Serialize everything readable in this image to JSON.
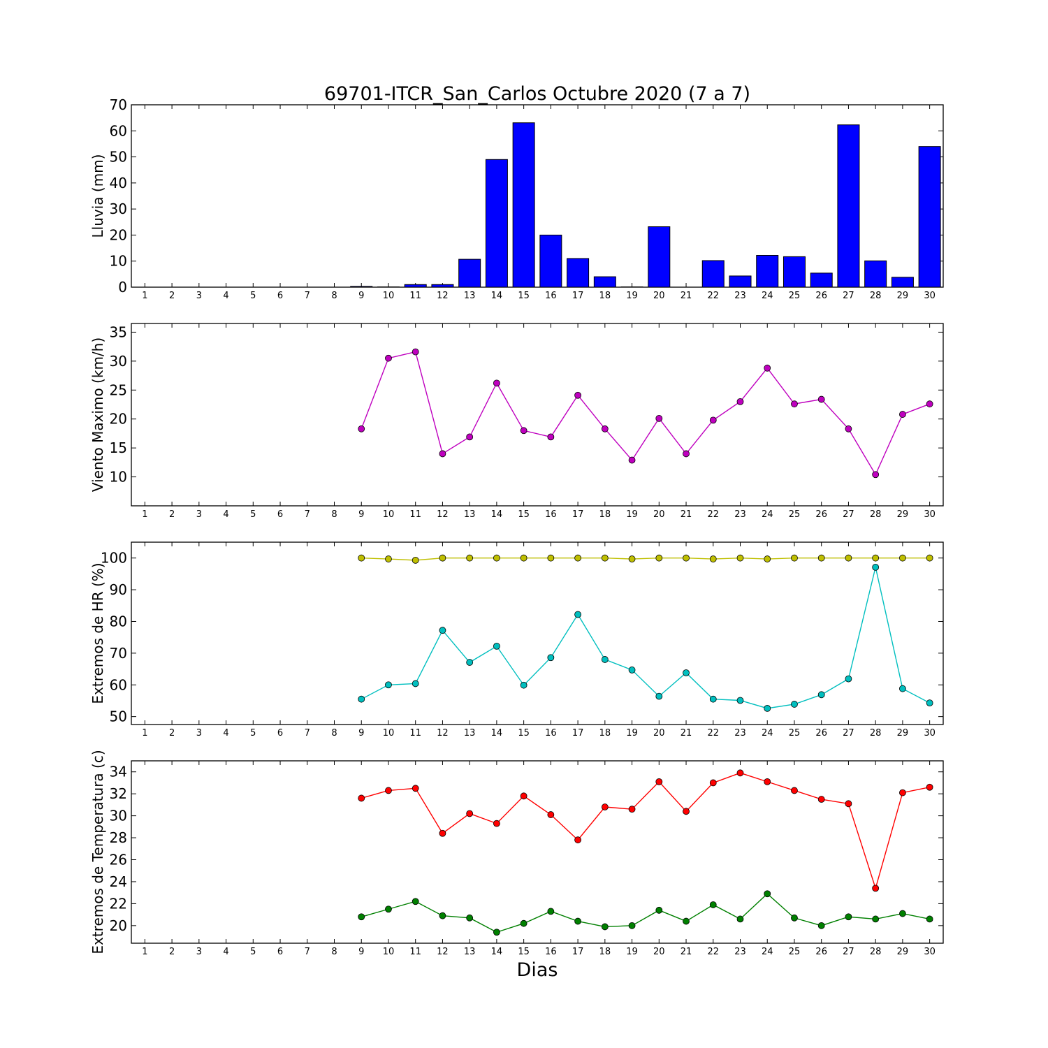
{
  "figure": {
    "title": "69701-ITCR_San_Carlos Octubre 2020  (7 a 7)",
    "xlabel": "Dias"
  },
  "chart_data": [
    {
      "type": "bar",
      "ylabel": "Lluvia (mm)",
      "ylim": [
        0,
        70
      ],
      "yticks": [
        0,
        10,
        20,
        30,
        40,
        50,
        60,
        70
      ],
      "categories": [
        "1",
        "2",
        "3",
        "4",
        "5",
        "6",
        "7",
        "8",
        "9",
        "10",
        "11",
        "12",
        "13",
        "14",
        "15",
        "16",
        "17",
        "18",
        "19",
        "20",
        "21",
        "22",
        "23",
        "24",
        "25",
        "26",
        "27",
        "28",
        "29",
        "30"
      ],
      "series": [
        {
          "color": "#0000ff",
          "values": [
            0,
            0,
            0,
            0,
            0,
            0,
            0,
            0,
            0.3,
            0.1,
            1.0,
            1.0,
            10.7,
            49.0,
            63.1,
            20.0,
            11.0,
            4.0,
            0.1,
            23.2,
            0,
            10.2,
            4.3,
            12.2,
            11.7,
            5.4,
            62.3,
            10.1,
            3.8,
            54.0
          ]
        }
      ]
    },
    {
      "type": "line",
      "ylabel": "Viento Maximo (km/h)",
      "ylim": [
        5,
        36.5
      ],
      "yticks": [
        10,
        15,
        20,
        25,
        30,
        35
      ],
      "x": [
        9,
        10,
        11,
        12,
        13,
        14,
        15,
        16,
        17,
        18,
        19,
        20,
        21,
        22,
        23,
        24,
        25,
        26,
        27,
        28,
        29,
        30
      ],
      "series": [
        {
          "color": "#bf00bf",
          "values": [
            18.3,
            30.5,
            31.6,
            14.0,
            16.9,
            26.2,
            18.0,
            16.9,
            24.1,
            18.3,
            12.9,
            20.1,
            14.0,
            19.8,
            23.0,
            28.8,
            22.6,
            23.4,
            18.3,
            10.4,
            20.8,
            22.6
          ]
        }
      ]
    },
    {
      "type": "line",
      "ylabel": "Extremos de HR (%)",
      "ylim": [
        47.5,
        105
      ],
      "yticks": [
        50,
        60,
        70,
        80,
        90,
        100
      ],
      "x": [
        9,
        10,
        11,
        12,
        13,
        14,
        15,
        16,
        17,
        18,
        19,
        20,
        21,
        22,
        23,
        24,
        25,
        26,
        27,
        28,
        29,
        30
      ],
      "series": [
        {
          "color": "#bfbf00",
          "values": [
            100,
            99.7,
            99.3,
            100,
            100,
            100,
            100,
            100,
            100,
            100,
            99.7,
            100,
            100,
            99.7,
            100,
            99.7,
            100,
            100,
            100,
            100,
            100,
            100
          ]
        },
        {
          "color": "#00bfbf",
          "values": [
            55.5,
            60.0,
            60.4,
            77.2,
            67.1,
            72.2,
            59.9,
            68.6,
            82.2,
            68.0,
            64.7,
            56.4,
            63.8,
            55.5,
            55.1,
            52.6,
            53.9,
            56.9,
            61.9,
            97.1,
            58.8,
            54.3
          ]
        }
      ]
    },
    {
      "type": "line",
      "ylabel": "Extremos de Temperatura (c)",
      "ylim": [
        18.4,
        35
      ],
      "yticks": [
        20,
        22,
        24,
        26,
        28,
        30,
        32,
        34
      ],
      "x": [
        9,
        10,
        11,
        12,
        13,
        14,
        15,
        16,
        17,
        18,
        19,
        20,
        21,
        22,
        23,
        24,
        25,
        26,
        27,
        28,
        29,
        30
      ],
      "series": [
        {
          "color": "#ff0000",
          "values": [
            31.6,
            32.3,
            32.5,
            28.4,
            30.2,
            29.3,
            31.8,
            30.1,
            27.8,
            30.8,
            30.6,
            33.1,
            30.4,
            33.0,
            33.9,
            33.1,
            32.3,
            31.5,
            31.1,
            23.4,
            32.1,
            32.6
          ]
        },
        {
          "color": "#008000",
          "values": [
            20.8,
            21.5,
            22.2,
            20.9,
            20.7,
            19.4,
            20.2,
            21.3,
            20.4,
            19.9,
            20.0,
            21.4,
            20.4,
            21.9,
            20.6,
            22.9,
            20.7,
            20.0,
            20.8,
            20.6,
            21.1,
            20.6
          ]
        }
      ]
    }
  ]
}
